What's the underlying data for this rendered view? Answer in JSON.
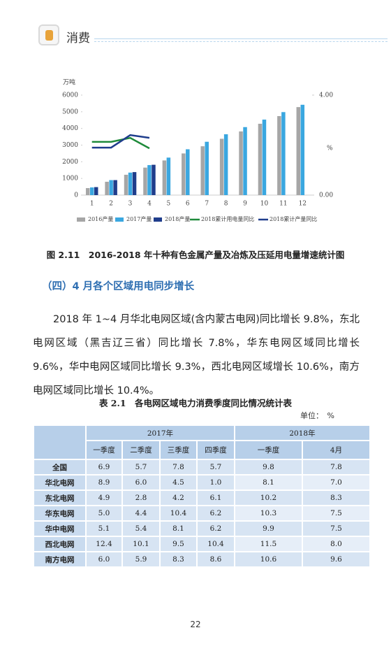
{
  "header": {
    "title": "消费"
  },
  "chart_data": {
    "type": "bar",
    "y_label": "万吨",
    "y2_label": "%",
    "categories": [
      "1",
      "2",
      "3",
      "4",
      "5",
      "6",
      "7",
      "8",
      "9",
      "10",
      "11",
      "12"
    ],
    "ylim": [
      0,
      6000
    ],
    "yticks": [
      0,
      1000,
      2000,
      3000,
      4000,
      5000,
      6000
    ],
    "y2lim": [
      0,
      4
    ],
    "y2ticks": [
      {
        "value": 0,
        "label": "0.00"
      },
      {
        "value": 4,
        "label": "4.00"
      }
    ],
    "series": [
      {
        "name": "2016产量",
        "type": "bar",
        "color": "#a6a6a6",
        "values": [
          420,
          800,
          1220,
          1650,
          2080,
          2500,
          2930,
          3380,
          3820,
          4280,
          4740,
          5280
        ]
      },
      {
        "name": "2017产量",
        "type": "bar",
        "color": "#3aa7e0",
        "values": [
          460,
          900,
          1350,
          1800,
          2250,
          2750,
          3200,
          3650,
          4080,
          4530,
          4980,
          5420
        ]
      },
      {
        "name": "2018产量",
        "type": "bar",
        "color": "#1f3d8c",
        "values": [
          480,
          900,
          1380,
          1820,
          null,
          null,
          null,
          null,
          null,
          null,
          null,
          null
        ]
      },
      {
        "name": "2018累计用电量同比",
        "type": "line",
        "axis": "y2",
        "color": "#1e8a3a",
        "values": [
          2.13,
          2.13,
          2.29,
          1.87,
          null,
          null,
          null,
          null,
          null,
          null,
          null,
          null
        ]
      },
      {
        "name": "2018累计产量同比",
        "type": "line",
        "axis": "y2",
        "color": "#1f3d8c",
        "values": [
          1.9,
          1.9,
          2.4,
          2.29,
          null,
          null,
          null,
          null,
          null,
          null,
          null,
          null
        ]
      }
    ]
  },
  "caption": "图 2.11　2016-2018 年十种有色金属产量及冶炼及压延用电量增速统计图",
  "section": "（四）4 月各个区域用电同步增长",
  "paragraph": "2018 年 1~4 月华北电网区域(含内蒙古电网)同比增长 9.8%，东北电网区域（黑吉辽三省）同比增长 7.8%，华东电网区域同比增长 9.6%，华中电网区域同比增长 9.3%，西北电网区域增长 10.6%，南方电网区域同比增长 10.4%。",
  "table": {
    "title": "表 2.1　各电网区域电力消费季度同比情况统计表",
    "unit": "单位：　%",
    "groups": [
      "2017年",
      "2018年"
    ],
    "columns": [
      "一季度",
      "二季度",
      "三季度",
      "四季度",
      "一季度",
      "4月"
    ],
    "rows": [
      [
        "全国",
        "6.9",
        "5.7",
        "7.8",
        "5.7",
        "9.8",
        "7.8"
      ],
      [
        "华北电网",
        "8.9",
        "6.0",
        "4.5",
        "1.0",
        "8.1",
        "7.0"
      ],
      [
        "东北电网",
        "4.9",
        "2.8",
        "4.2",
        "6.1",
        "10.2",
        "8.3"
      ],
      [
        "华东电网",
        "5.0",
        "4.4",
        "10.4",
        "6.2",
        "10.3",
        "7.5"
      ],
      [
        "华中电网",
        "5.1",
        "5.4",
        "8.1",
        "6.2",
        "9.9",
        "7.5"
      ],
      [
        "西北电网",
        "12.4",
        "10.1",
        "9.5",
        "10.4",
        "11.5",
        "8.0"
      ],
      [
        "南方电网",
        "6.0",
        "5.9",
        "8.3",
        "8.6",
        "10.6",
        "9.6"
      ]
    ]
  },
  "page_number": "22"
}
